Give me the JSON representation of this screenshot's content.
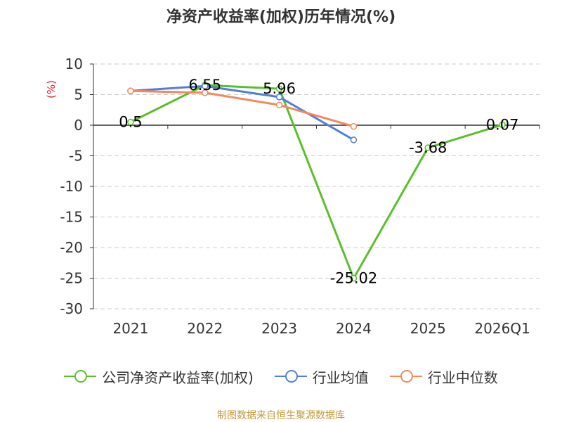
{
  "chart_data": {
    "type": "line",
    "title": "净资产收益率(加权)历年情况(%)",
    "ylabel": "(%)",
    "ylim": [
      -30,
      10
    ],
    "yticks": [
      10,
      5,
      0,
      -5,
      -10,
      -15,
      -20,
      -25,
      -30
    ],
    "categories": [
      "2021",
      "2022",
      "2023",
      "2024",
      "2025",
      "2026Q1"
    ],
    "grid": true,
    "legend_position": "bottom",
    "series": [
      {
        "name": "公司净资产收益率(加权)",
        "color": "#5ac02a",
        "values": [
          0.5,
          6.55,
          5.96,
          -25.02,
          -3.68,
          0.07
        ],
        "labels": [
          "0.5",
          "6.55",
          "5.96",
          "-25.02",
          "-3.68",
          "0.07"
        ]
      },
      {
        "name": "行业均值",
        "color": "#4f7fdb",
        "values": [
          5.6,
          6.4,
          4.6,
          -2.4,
          null,
          null
        ]
      },
      {
        "name": "行业中位数",
        "color": "#f4895a",
        "values": [
          5.6,
          5.3,
          3.3,
          -0.2,
          null,
          null
        ]
      }
    ]
  },
  "source": "制图数据来自恒生聚源数据库"
}
